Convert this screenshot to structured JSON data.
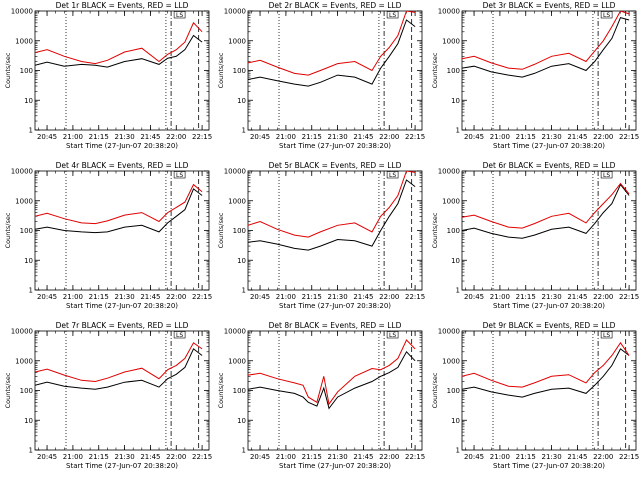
{
  "chart_data": [
    {
      "type": "line",
      "title": "Det 1r BLACK = Events, RED = LLD",
      "xlabel": "Start Time (27-Jun-07 20:38:20)",
      "ylabel": "Counts/sec",
      "y_scale": "log",
      "ylim": [
        1,
        10000
      ],
      "xlim": [
        "20:38",
        "22:19"
      ],
      "x_ticks": [
        "20:45",
        "21:00",
        "21:15",
        "21:30",
        "21:45",
        "22:00",
        "22:15"
      ],
      "y_ticks": [
        "1",
        "10",
        "100",
        "1000",
        "10000"
      ],
      "marker_label": "LS",
      "vlines": {
        "dotted": [
          "20:56",
          "21:54"
        ],
        "dashdot": [
          "21:57"
        ],
        "dashed": [
          "22:13"
        ]
      },
      "series": [
        {
          "color": "#000000",
          "x": [
            "20:38",
            "20:45",
            "20:55",
            "21:05",
            "21:13",
            "21:20",
            "21:30",
            "21:40",
            "21:50",
            "21:55",
            "22:00",
            "22:05",
            "22:10",
            "22:15"
          ],
          "y": [
            150,
            190,
            140,
            160,
            150,
            130,
            200,
            250,
            160,
            260,
            300,
            500,
            1500,
            900
          ]
        },
        {
          "color": "#e00000",
          "x": [
            "20:38",
            "20:45",
            "20:55",
            "21:05",
            "21:13",
            "21:20",
            "21:30",
            "21:40",
            "21:50",
            "21:55",
            "22:00",
            "22:05",
            "22:10",
            "22:15"
          ],
          "y": [
            400,
            500,
            300,
            200,
            170,
            220,
            420,
            560,
            200,
            350,
            500,
            900,
            4000,
            2000
          ]
        }
      ]
    },
    {
      "type": "line",
      "title": "Det 2r BLACK = Events, RED = LLD",
      "xlabel": "Start Time (27-Jun-07 20:38:20)",
      "ylabel": "Counts/sec",
      "y_scale": "log",
      "ylim": [
        1,
        10000
      ],
      "xlim": [
        "20:38",
        "22:19"
      ],
      "x_ticks": [
        "20:45",
        "21:00",
        "21:15",
        "21:30",
        "21:45",
        "22:00",
        "22:15"
      ],
      "y_ticks": [
        "1",
        "10",
        "100",
        "1000",
        "10000"
      ],
      "marker_label": "LS",
      "vlines": {
        "dotted": [
          "20:56",
          "21:54"
        ],
        "dashdot": [
          "21:57"
        ],
        "dashed": [
          "22:13"
        ]
      },
      "series": [
        {
          "color": "#000000",
          "x": [
            "20:38",
            "20:45",
            "20:55",
            "21:05",
            "21:13",
            "21:20",
            "21:30",
            "21:40",
            "21:50",
            "21:55",
            "22:00",
            "22:05",
            "22:10",
            "22:15"
          ],
          "y": [
            50,
            60,
            45,
            35,
            30,
            40,
            70,
            60,
            35,
            120,
            300,
            800,
            5000,
            3000
          ]
        },
        {
          "color": "#e00000",
          "x": [
            "20:38",
            "20:45",
            "20:55",
            "21:05",
            "21:13",
            "21:20",
            "21:30",
            "21:40",
            "21:50",
            "21:55",
            "22:00",
            "22:05",
            "22:10",
            "22:15"
          ],
          "y": [
            180,
            220,
            130,
            80,
            70,
            100,
            170,
            200,
            100,
            300,
            600,
            1500,
            10000,
            9000
          ]
        }
      ]
    },
    {
      "type": "line",
      "title": "Det 3r BLACK = Events, RED = LLD",
      "xlabel": "Start Time (27-Jun-07 20:38:20)",
      "ylabel": "Counts/sec",
      "y_scale": "log",
      "ylim": [
        1,
        10000
      ],
      "xlim": [
        "20:38",
        "22:19"
      ],
      "x_ticks": [
        "20:45",
        "21:00",
        "21:15",
        "21:30",
        "21:45",
        "22:00",
        "22:15"
      ],
      "y_ticks": [
        "1",
        "10",
        "100",
        "1000",
        "10000"
      ],
      "marker_label": "LS",
      "vlines": {
        "dotted": [
          "20:56",
          "21:54"
        ],
        "dashdot": [
          "21:57"
        ],
        "dashed": [
          "22:13"
        ]
      },
      "series": [
        {
          "color": "#000000",
          "x": [
            "20:38",
            "20:45",
            "20:55",
            "21:05",
            "21:13",
            "21:20",
            "21:30",
            "21:40",
            "21:50",
            "21:55",
            "22:00",
            "22:05",
            "22:10",
            "22:15"
          ],
          "y": [
            120,
            140,
            90,
            70,
            60,
            80,
            140,
            170,
            100,
            200,
            500,
            1200,
            6000,
            5000
          ]
        },
        {
          "color": "#e00000",
          "x": [
            "20:38",
            "20:45",
            "20:55",
            "21:05",
            "21:13",
            "21:20",
            "21:30",
            "21:40",
            "21:50",
            "21:55",
            "22:00",
            "22:05",
            "22:10",
            "22:15"
          ],
          "y": [
            250,
            300,
            180,
            120,
            110,
            160,
            300,
            380,
            200,
            450,
            1000,
            3000,
            10000,
            8000
          ]
        }
      ]
    },
    {
      "type": "line",
      "title": "Det 4r BLACK = Events, RED = LLD",
      "xlabel": "Start Time (27-Jun-07 20:38:20)",
      "ylabel": "Counts/sec",
      "y_scale": "log",
      "ylim": [
        1,
        10000
      ],
      "xlim": [
        "20:38",
        "22:19"
      ],
      "x_ticks": [
        "20:45",
        "21:00",
        "21:15",
        "21:30",
        "21:45",
        "22:00",
        "22:15"
      ],
      "y_ticks": [
        "1",
        "10",
        "100",
        "1000",
        "10000"
      ],
      "marker_label": "LS",
      "vlines": {
        "dotted": [
          "20:56",
          "21:54"
        ],
        "dashdot": [
          "21:57"
        ],
        "dashed": [
          "22:13"
        ]
      },
      "series": [
        {
          "color": "#000000",
          "x": [
            "20:38",
            "20:45",
            "20:55",
            "21:05",
            "21:13",
            "21:20",
            "21:30",
            "21:40",
            "21:50",
            "21:55",
            "22:00",
            "22:05",
            "22:10",
            "22:15"
          ],
          "y": [
            110,
            130,
            100,
            90,
            85,
            90,
            130,
            150,
            90,
            180,
            300,
            500,
            2500,
            1500
          ]
        },
        {
          "color": "#e00000",
          "x": [
            "20:38",
            "20:45",
            "20:55",
            "21:05",
            "21:13",
            "21:20",
            "21:30",
            "21:40",
            "21:50",
            "21:55",
            "22:00",
            "22:05",
            "22:10",
            "22:15"
          ],
          "y": [
            300,
            380,
            250,
            180,
            170,
            210,
            330,
            400,
            200,
            400,
            600,
            900,
            3500,
            2000
          ]
        }
      ]
    },
    {
      "type": "line",
      "title": "Det 5r BLACK = Events, RED = LLD",
      "xlabel": "Start Time (27-Jun-07 20:38:20)",
      "ylabel": "Counts/sec",
      "y_scale": "log",
      "ylim": [
        1,
        10000
      ],
      "xlim": [
        "20:38",
        "22:19"
      ],
      "x_ticks": [
        "20:45",
        "21:00",
        "21:15",
        "21:30",
        "21:45",
        "22:00",
        "22:15"
      ],
      "y_ticks": [
        "1",
        "10",
        "100",
        "1000",
        "10000"
      ],
      "marker_label": "LS",
      "vlines": {
        "dotted": [
          "20:56",
          "21:54"
        ],
        "dashdot": [
          "21:57"
        ],
        "dashed": [
          "22:13"
        ]
      },
      "series": [
        {
          "color": "#000000",
          "x": [
            "20:38",
            "20:45",
            "20:55",
            "21:05",
            "21:13",
            "21:20",
            "21:30",
            "21:40",
            "21:50",
            "21:55",
            "22:00",
            "22:05",
            "22:10",
            "22:15"
          ],
          "y": [
            40,
            45,
            35,
            25,
            22,
            30,
            50,
            45,
            30,
            100,
            300,
            800,
            5000,
            3000
          ]
        },
        {
          "color": "#e00000",
          "x": [
            "20:38",
            "20:45",
            "20:55",
            "21:05",
            "21:13",
            "21:20",
            "21:30",
            "21:40",
            "21:50",
            "21:55",
            "22:00",
            "22:05",
            "22:10",
            "22:15"
          ],
          "y": [
            150,
            200,
            110,
            70,
            60,
            90,
            150,
            180,
            90,
            300,
            600,
            1500,
            10000,
            9000
          ]
        }
      ]
    },
    {
      "type": "line",
      "title": "Det 6r BLACK = Events, RED = LLD",
      "xlabel": "Start Time (27-Jun-07 20:38:20)",
      "ylabel": "Counts/sec",
      "y_scale": "log",
      "ylim": [
        1,
        10000
      ],
      "xlim": [
        "20:38",
        "22:19"
      ],
      "x_ticks": [
        "20:45",
        "21:00",
        "21:15",
        "21:30",
        "21:45",
        "22:00",
        "22:15"
      ],
      "y_ticks": [
        "1",
        "10",
        "100",
        "1000",
        "10000"
      ],
      "marker_label": "LS",
      "vlines": {
        "dotted": [
          "20:56",
          "21:54"
        ],
        "dashdot": [
          "21:57"
        ],
        "dashed": [
          "22:13"
        ]
      },
      "series": [
        {
          "color": "#000000",
          "x": [
            "20:38",
            "20:45",
            "20:55",
            "21:05",
            "21:13",
            "21:20",
            "21:30",
            "21:40",
            "21:50",
            "21:55",
            "22:00",
            "22:05",
            "22:10",
            "22:15"
          ],
          "y": [
            100,
            120,
            80,
            60,
            55,
            70,
            110,
            130,
            80,
            170,
            400,
            800,
            3500,
            1500
          ]
        },
        {
          "color": "#e00000",
          "x": [
            "20:38",
            "20:45",
            "20:55",
            "21:05",
            "21:13",
            "21:20",
            "21:30",
            "21:40",
            "21:50",
            "21:55",
            "22:00",
            "22:05",
            "22:10",
            "22:15"
          ],
          "y": [
            280,
            330,
            200,
            130,
            120,
            170,
            300,
            380,
            180,
            400,
            800,
            1600,
            3800,
            1700
          ]
        }
      ]
    },
    {
      "type": "line",
      "title": "Det 7r BLACK = Events, RED = LLD",
      "xlabel": "Start Time (27-Jun-07 20:38:20)",
      "ylabel": "Counts/sec",
      "y_scale": "log",
      "ylim": [
        1,
        10000
      ],
      "xlim": [
        "20:38",
        "22:19"
      ],
      "x_ticks": [
        "20:45",
        "21:00",
        "21:15",
        "21:30",
        "21:45",
        "22:00",
        "22:15"
      ],
      "y_ticks": [
        "1",
        "10",
        "100",
        "1000",
        "10000"
      ],
      "marker_label": "LS",
      "vlines": {
        "dotted": [
          "20:56",
          "21:54"
        ],
        "dashdot": [
          "21:57"
        ],
        "dashed": [
          "22:13"
        ]
      },
      "series": [
        {
          "color": "#000000",
          "x": [
            "20:38",
            "20:45",
            "20:55",
            "21:05",
            "21:13",
            "21:20",
            "21:30",
            "21:40",
            "21:50",
            "21:55",
            "22:00",
            "22:05",
            "22:10",
            "22:15"
          ],
          "y": [
            150,
            190,
            140,
            120,
            110,
            130,
            190,
            220,
            130,
            250,
            350,
            600,
            2500,
            1500
          ]
        },
        {
          "color": "#e00000",
          "x": [
            "20:38",
            "20:45",
            "20:55",
            "21:05",
            "21:13",
            "21:20",
            "21:30",
            "21:40",
            "21:50",
            "21:55",
            "22:00",
            "22:05",
            "22:10",
            "22:15"
          ],
          "y": [
            420,
            520,
            330,
            220,
            200,
            260,
            420,
            560,
            250,
            500,
            700,
            1200,
            4000,
            2500
          ]
        }
      ]
    },
    {
      "type": "line",
      "title": "Det 8r BLACK = Events, RED = LLD",
      "xlabel": "Start Time (27-Jun-07 20:38:20)",
      "ylabel": "Counts/sec",
      "y_scale": "log",
      "ylim": [
        1,
        10000
      ],
      "xlim": [
        "20:38",
        "22:19"
      ],
      "x_ticks": [
        "20:45",
        "21:00",
        "21:15",
        "21:30",
        "21:45",
        "22:00",
        "22:15"
      ],
      "y_ticks": [
        "1",
        "10",
        "100",
        "1000",
        "10000"
      ],
      "marker_label": "LS",
      "vlines": {
        "dotted": [
          "20:56",
          "21:54"
        ],
        "dashdot": [
          "21:57"
        ],
        "dashed": [
          "22:13"
        ]
      },
      "series": [
        {
          "color": "#000000",
          "x": [
            "20:38",
            "20:45",
            "20:55",
            "21:05",
            "21:10",
            "21:13",
            "21:18",
            "21:22",
            "21:25",
            "21:30",
            "21:40",
            "21:50",
            "21:55",
            "22:00",
            "22:05",
            "22:10",
            "22:15"
          ],
          "y": [
            110,
            130,
            100,
            80,
            60,
            40,
            30,
            120,
            25,
            60,
            120,
            200,
            300,
            400,
            600,
            2000,
            1000
          ]
        },
        {
          "color": "#e00000",
          "x": [
            "20:38",
            "20:45",
            "20:55",
            "21:05",
            "21:10",
            "21:13",
            "21:18",
            "21:22",
            "21:25",
            "21:30",
            "21:40",
            "21:50",
            "21:55",
            "22:00",
            "22:05",
            "22:10",
            "22:15"
          ],
          "y": [
            330,
            380,
            250,
            180,
            150,
            60,
            40,
            300,
            35,
            90,
            300,
            550,
            500,
            700,
            1200,
            5000,
            2500
          ]
        }
      ]
    },
    {
      "type": "line",
      "title": "Det 9r BLACK = Events, RED = LLD",
      "xlabel": "Start Time (27-Jun-07 20:38:20)",
      "ylabel": "Counts/sec",
      "y_scale": "log",
      "ylim": [
        1,
        10000
      ],
      "xlim": [
        "20:38",
        "22:19"
      ],
      "x_ticks": [
        "20:45",
        "21:00",
        "21:15",
        "21:30",
        "21:45",
        "22:00",
        "22:15"
      ],
      "y_ticks": [
        "1",
        "10",
        "100",
        "1000",
        "10000"
      ],
      "marker_label": "LS",
      "vlines": {
        "dotted": [
          "20:56",
          "21:54"
        ],
        "dashdot": [
          "21:57"
        ],
        "dashed": [
          "22:13"
        ]
      },
      "series": [
        {
          "color": "#000000",
          "x": [
            "20:38",
            "20:45",
            "20:55",
            "21:05",
            "21:13",
            "21:20",
            "21:30",
            "21:40",
            "21:50",
            "21:55",
            "22:00",
            "22:05",
            "22:10",
            "22:15"
          ],
          "y": [
            110,
            130,
            90,
            70,
            60,
            80,
            110,
            120,
            80,
            150,
            300,
            700,
            2500,
            1500
          ]
        },
        {
          "color": "#e00000",
          "x": [
            "20:38",
            "20:45",
            "20:55",
            "21:05",
            "21:13",
            "21:20",
            "21:30",
            "21:40",
            "21:50",
            "21:55",
            "22:00",
            "22:05",
            "22:10",
            "22:15"
          ],
          "y": [
            300,
            380,
            220,
            140,
            130,
            180,
            300,
            340,
            180,
            400,
            700,
            1500,
            4000,
            1500
          ]
        }
      ]
    }
  ]
}
